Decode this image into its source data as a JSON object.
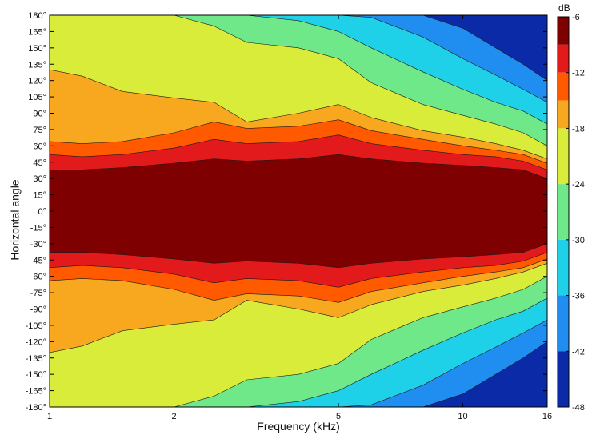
{
  "chart_data": {
    "type": "heatmap",
    "subtype": "filled-contour",
    "xlabel": "Frequency (kHz)",
    "ylabel": "Horizontal angle",
    "x_scale": "log",
    "xlim": [
      1,
      16
    ],
    "ylim": [
      -180,
      180
    ],
    "x_ticks": [
      1,
      2,
      5,
      10,
      16
    ],
    "x_tick_labels": [
      "1",
      "2",
      "5",
      "10",
      "16"
    ],
    "y_ticks": [
      180,
      165,
      150,
      135,
      120,
      105,
      90,
      75,
      60,
      45,
      30,
      15,
      0,
      -15,
      -30,
      -45,
      -60,
      -75,
      -90,
      -105,
      -120,
      -135,
      -150,
      -165,
      -180
    ],
    "y_tick_labels": [
      "180°",
      "165°",
      "150°",
      "135°",
      "120°",
      "105°",
      "90°",
      "75°",
      "60°",
      "45°",
      "30°",
      "15°",
      "0°",
      "-15°",
      "-30°",
      "-45°",
      "-60°",
      "-75°",
      "-90°",
      "-105°",
      "-120°",
      "-135°",
      "-150°",
      "-165°",
      "-180°"
    ],
    "colorbar": {
      "title": "dB",
      "range": [
        -48,
        -6
      ],
      "ticks": [
        -6,
        -12,
        -18,
        -24,
        -30,
        -36,
        -42,
        -48
      ],
      "tick_labels": [
        "-6",
        "-12",
        "-18",
        "-24",
        "-30",
        "-36",
        "-42",
        "-48"
      ]
    },
    "levels": [
      {
        "min": -9,
        "max": -6,
        "color": "#7f0000"
      },
      {
        "min": -12,
        "max": -9,
        "color": "#e31a1c"
      },
      {
        "min": -15,
        "max": -12,
        "color": "#ff5a00"
      },
      {
        "min": -18,
        "max": -15,
        "color": "#f7a81e"
      },
      {
        "min": -24,
        "max": -18,
        "color": "#d9ec3a"
      },
      {
        "min": -30,
        "max": -24,
        "color": "#6fe88a"
      },
      {
        "min": -36,
        "max": -30,
        "color": "#1fd1e8"
      },
      {
        "min": -42,
        "max": -36,
        "color": "#1f8ef0"
      },
      {
        "min": -48,
        "max": -42,
        "color": "#0b2aa8"
      }
    ],
    "contours_upper_half": {
      "freq_khz": [
        1,
        1.2,
        1.5,
        2,
        2.5,
        3,
        4,
        5,
        6,
        8,
        10,
        12,
        14,
        16
      ],
      "beam_deg_by_level": [
        {
          "level": -9,
          "angle_deg": [
            38,
            38,
            40,
            44,
            48,
            46,
            48,
            52,
            48,
            44,
            42,
            40,
            38,
            30
          ]
        },
        {
          "level": -12,
          "angle_deg": [
            52,
            50,
            52,
            58,
            66,
            62,
            64,
            70,
            62,
            56,
            52,
            50,
            46,
            38
          ]
        },
        {
          "level": -15,
          "angle_deg": [
            64,
            62,
            64,
            72,
            82,
            76,
            78,
            84,
            74,
            66,
            60,
            56,
            52,
            44
          ]
        },
        {
          "level": -18,
          "angle_deg": [
            130,
            124,
            110,
            104,
            100,
            82,
            90,
            98,
            86,
            74,
            68,
            62,
            56,
            48
          ]
        },
        {
          "level": -24,
          "angle_deg": [
            180,
            180,
            180,
            180,
            170,
            155,
            150,
            140,
            118,
            98,
            88,
            80,
            72,
            60
          ]
        },
        {
          "level": -30,
          "angle_deg": [
            180,
            180,
            180,
            180,
            180,
            180,
            175,
            165,
            150,
            128,
            112,
            100,
            92,
            80
          ]
        },
        {
          "level": -36,
          "angle_deg": [
            180,
            180,
            180,
            180,
            180,
            180,
            180,
            180,
            178,
            160,
            140,
            125,
            112,
            100
          ]
        },
        {
          "level": -42,
          "angle_deg": [
            180,
            180,
            180,
            180,
            180,
            180,
            180,
            180,
            180,
            180,
            168,
            150,
            135,
            120
          ]
        }
      ]
    }
  }
}
